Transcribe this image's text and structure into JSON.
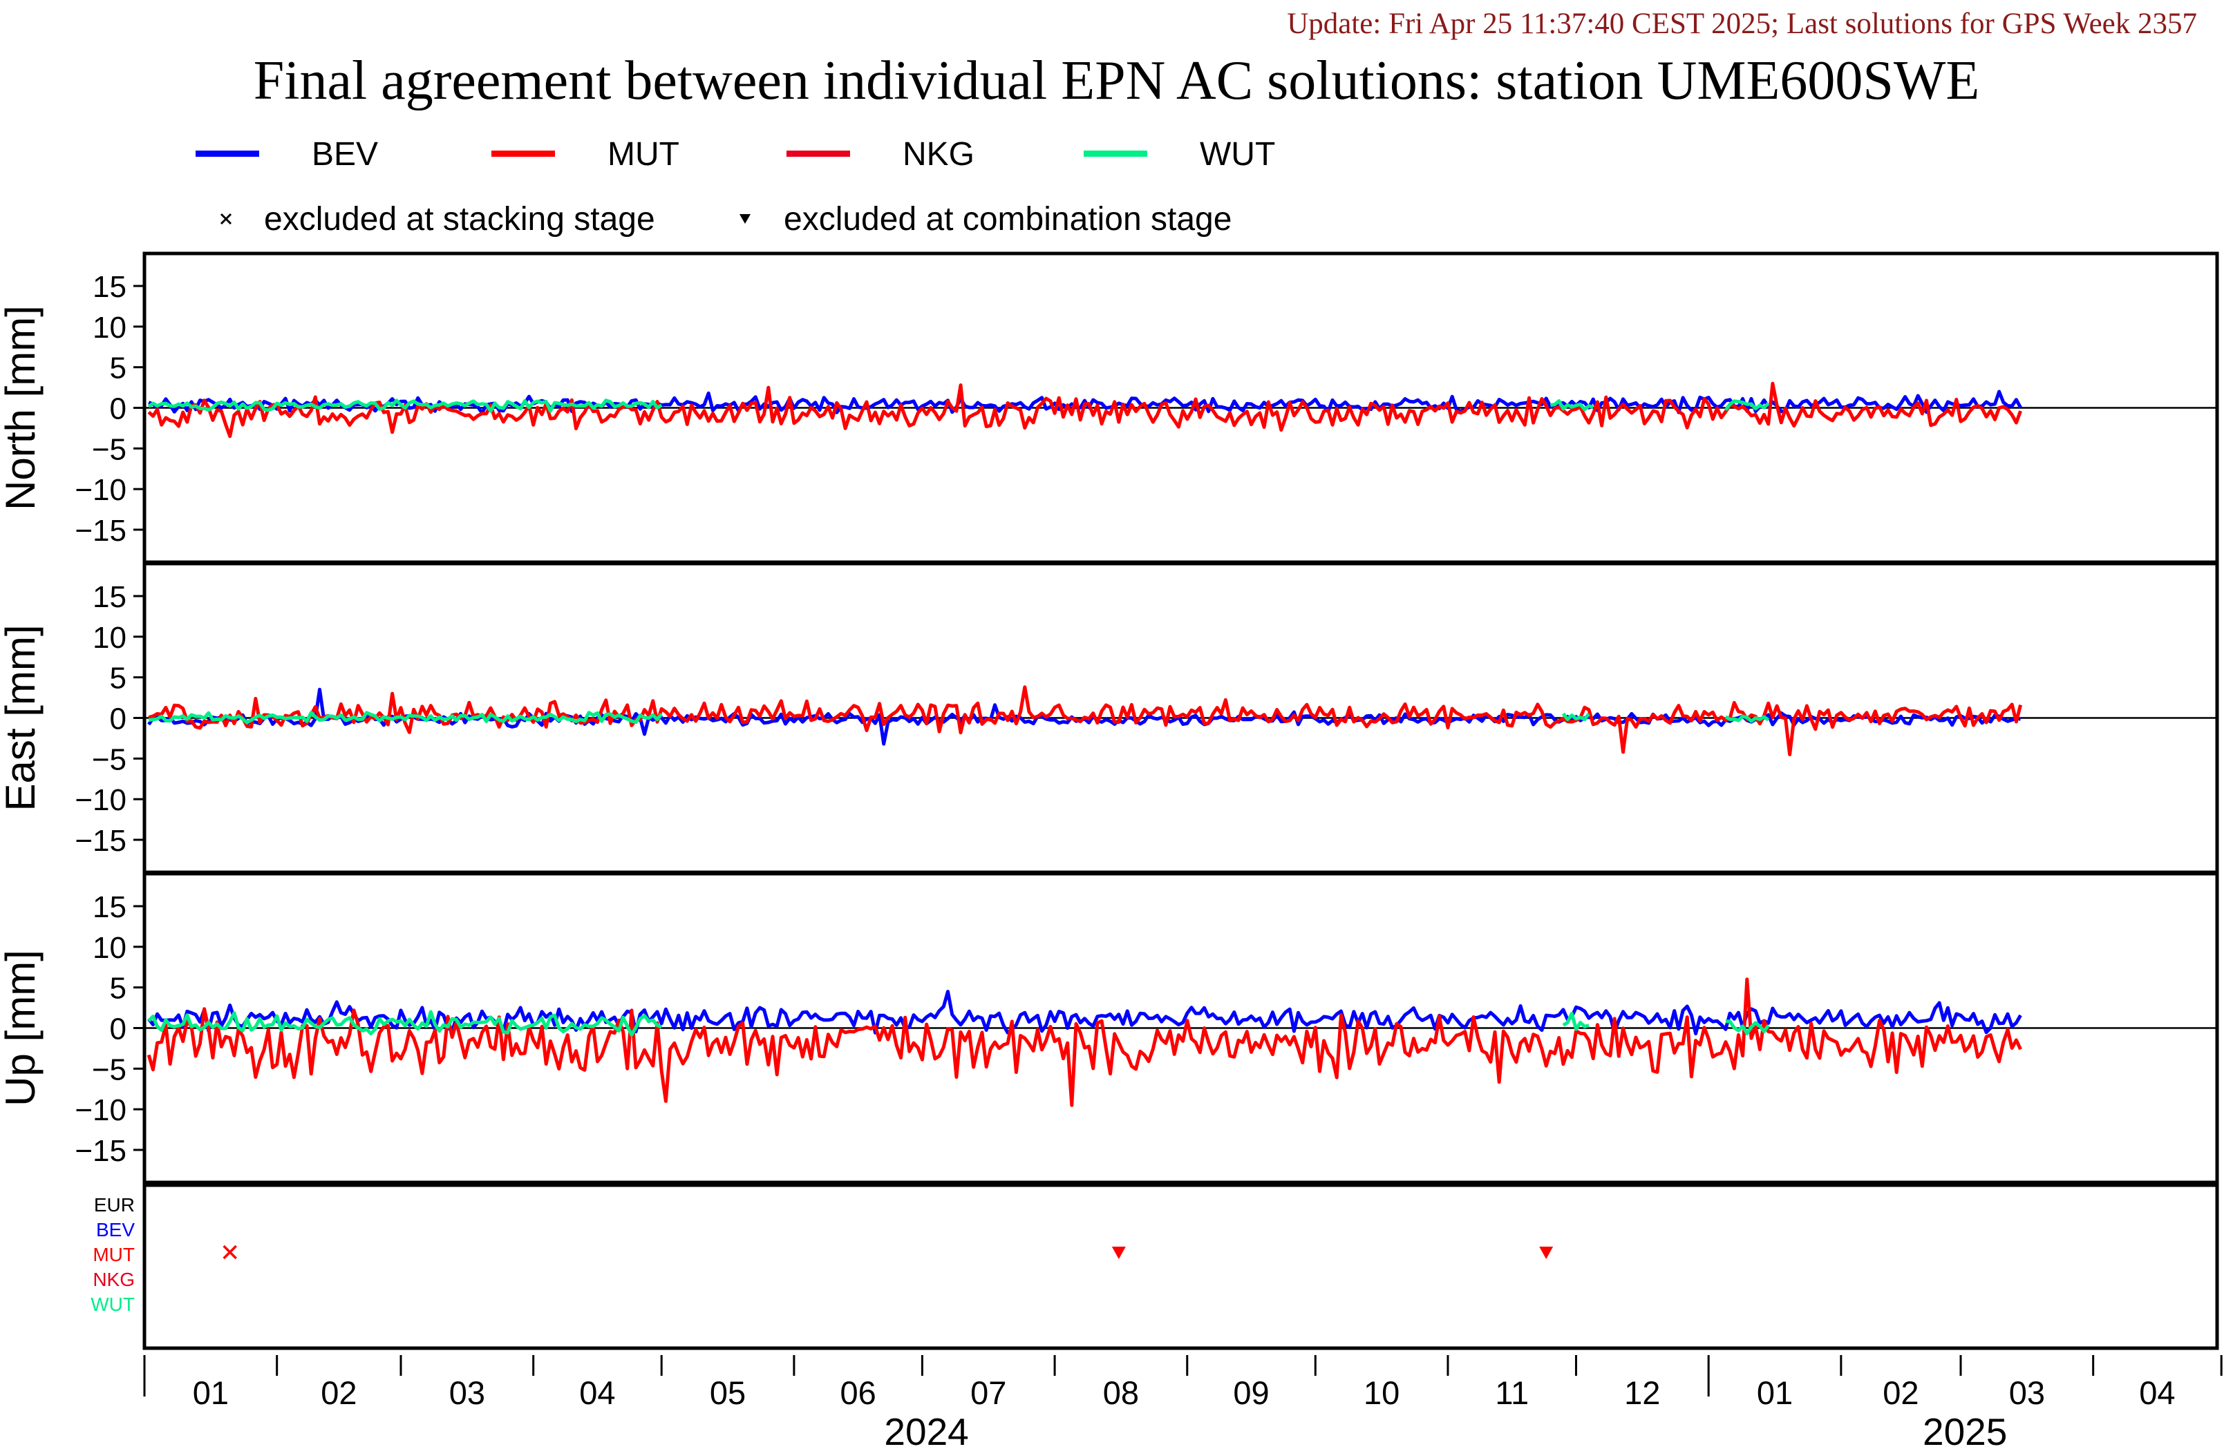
{
  "header": {
    "update_text": "Update: Fri Apr 25 11:37:40 CEST 2025; Last solutions for GPS Week 2357",
    "title": "Final agreement between individual EPN AC solutions: station UME600SWE"
  },
  "legend": [
    {
      "label": "BEV",
      "color": "#0000ff"
    },
    {
      "label": "MUT",
      "color": "#ff0000"
    },
    {
      "label": "NKG",
      "color": "#e8001c"
    },
    {
      "label": "WUT",
      "color": "#00ee88"
    }
  ],
  "markers": [
    {
      "symbol": "×",
      "label": "excluded at stacking stage"
    },
    {
      "symbol": "▾",
      "label": "excluded at combination stage"
    }
  ],
  "chart_data": {
    "type": "line",
    "title": "Final agreement between individual EPN AC solutions: station UME600SWE",
    "x_start": "2024-01-01",
    "x_end": "2025-04-30",
    "data_end": "2025-03-15",
    "x_month_labels": [
      "01",
      "02",
      "03",
      "04",
      "05",
      "06",
      "07",
      "08",
      "09",
      "10",
      "11",
      "12",
      "01",
      "02",
      "03",
      "04"
    ],
    "year_labels": [
      "2024",
      "2025"
    ],
    "ylim": [
      -19,
      19
    ],
    "yticks": [
      15,
      10,
      5,
      0,
      -5,
      -10,
      -15
    ],
    "panels": [
      {
        "ylabel": "North [mm]",
        "series": [
          {
            "name": "BEV",
            "color": "#0000ff",
            "level": 0.4,
            "spread": 0.6,
            "peak_dates": [
              "2024-05-12",
              "2025-03-10"
            ],
            "peak_values": [
              1.8,
              2.0
            ]
          },
          {
            "name": "MUT",
            "color": "#ff0000",
            "level": -0.6,
            "spread": 1.2,
            "peak_dates": [
              "2024-01-21",
              "2024-02-28",
              "2024-05-26",
              "2024-07-10",
              "2025-01-16"
            ],
            "peak_values": [
              -3.5,
              -3.0,
              2.5,
              2.8,
              3.0
            ]
          },
          {
            "name": "WUT",
            "color": "#00ee88",
            "level": 0.3,
            "spread": 0.4,
            "active_ranges": [
              [
                "2024-01-01",
                "2024-05-01"
              ],
              [
                "2024-11-25",
                "2024-12-05"
              ],
              [
                "2025-01-05",
                "2025-01-15"
              ]
            ]
          }
        ]
      },
      {
        "ylabel": "East [mm]",
        "series": [
          {
            "name": "BEV",
            "color": "#0000ff",
            "level": -0.2,
            "spread": 0.5,
            "peak_dates": [
              "2024-02-11",
              "2024-04-27",
              "2024-06-22",
              "2024-07-18"
            ],
            "peak_values": [
              3.5,
              -2.0,
              -3.2,
              1.6
            ]
          },
          {
            "name": "MUT",
            "color": "#ff0000",
            "level": 0.3,
            "spread": 1.1,
            "peak_dates": [
              "2024-02-28",
              "2024-07-25",
              "2024-12-12",
              "2025-01-20"
            ],
            "peak_values": [
              3.0,
              3.8,
              -4.2,
              -4.5
            ]
          },
          {
            "name": "WUT",
            "color": "#00ee88",
            "level": 0.0,
            "spread": 0.4,
            "active_ranges": [
              [
                "2024-01-01",
                "2024-05-01"
              ],
              [
                "2024-11-28",
                "2024-12-04"
              ],
              [
                "2025-01-05",
                "2025-01-15"
              ]
            ]
          }
        ]
      },
      {
        "ylabel": "Up [mm]",
        "series": [
          {
            "name": "BEV",
            "color": "#0000ff",
            "level": 1.2,
            "spread": 1.0,
            "peak_dates": [
              "2024-07-07"
            ],
            "peak_values": [
              4.5
            ]
          },
          {
            "name": "MUT",
            "color": "#ff0000",
            "level": -2.0,
            "spread": 2.6,
            "peak_dates": [
              "2024-05-02",
              "2024-08-05",
              "2025-01-10"
            ],
            "peak_values": [
              -9.0,
              -9.5,
              6.0
            ]
          },
          {
            "name": "WUT",
            "color": "#00ee88",
            "level": 0.5,
            "spread": 0.8,
            "active_ranges": [
              [
                "2024-01-01",
                "2024-05-01"
              ],
              [
                "2024-11-28",
                "2024-12-04"
              ],
              [
                "2025-01-05",
                "2025-01-15"
              ]
            ]
          }
        ]
      }
    ],
    "exclusion_panel": {
      "rows": [
        {
          "label": "EUR",
          "color": "#000000"
        },
        {
          "label": "BEV",
          "color": "#0000ff"
        },
        {
          "label": "MUT",
          "color": "#ff0000"
        },
        {
          "label": "NKG",
          "color": "#e8001c"
        },
        {
          "label": "WUT",
          "color": "#00ee88"
        }
      ],
      "events": [
        {
          "row": "MUT",
          "date": "2024-01-21",
          "type": "stacking",
          "color": "#ff0000"
        },
        {
          "row": "MUT",
          "date": "2024-08-16",
          "type": "combination",
          "color": "#ff0000"
        },
        {
          "row": "MUT",
          "date": "2024-11-24",
          "type": "combination",
          "color": "#ff0000"
        }
      ]
    }
  }
}
